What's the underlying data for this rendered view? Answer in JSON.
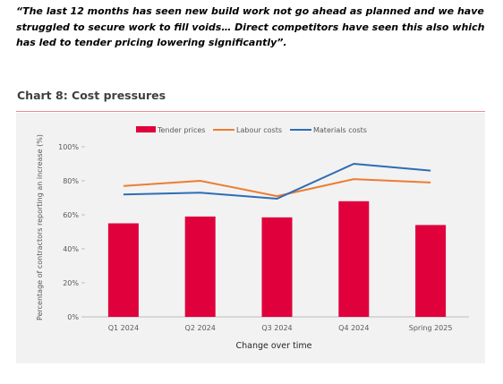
{
  "quote": {
    "text": "“The last 12 months has seen new build work not go ahead as planned and we have struggled to secure work to fill voids… Direct competitors have seen this also which has led to tender pricing lowering significantly”."
  },
  "chart_heading": "Chart 8: Cost pressures",
  "colors": {
    "tender": "#e0003c",
    "labour": "#ed7d31",
    "materials": "#2e6db4",
    "panel": "#f2f2f2",
    "heading_rule": "#f08a96"
  },
  "chart_data": {
    "type": "bar",
    "categories": [
      "Q1 2024",
      "Q2 2024",
      "Q3 2024",
      "Q4 2024",
      "Spring 2025"
    ],
    "series": [
      {
        "name": "Tender prices",
        "kind": "bar",
        "values": [
          55,
          59,
          58.5,
          68,
          54
        ]
      },
      {
        "name": "Labour costs",
        "kind": "line",
        "values": [
          77,
          80,
          71,
          81,
          79
        ]
      },
      {
        "name": "Materials costs",
        "kind": "line",
        "values": [
          72,
          73,
          69.5,
          90,
          86
        ]
      }
    ],
    "xlabel": "Change over time",
    "ylabel": "Percentage of contractors reporting an increase (%)",
    "ylim": [
      0,
      100
    ],
    "yticks": [
      "0%",
      "20%",
      "40%",
      "60%",
      "80%",
      "100%"
    ],
    "grid": false,
    "legend_position": "top"
  }
}
